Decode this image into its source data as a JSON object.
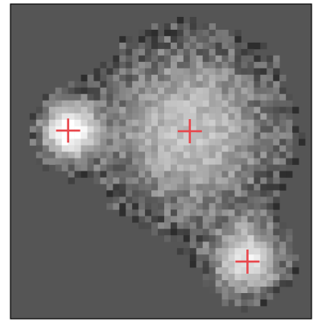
{
  "chart_data": {
    "type": "scatter",
    "x": [
      8.5,
      27.5,
      36.5
    ],
    "values": [
      19.2,
      19.3,
      39.6
    ],
    "color": "#e8474c",
    "marker": "+",
    "xlim": [
      -0.5,
      46.5
    ],
    "ylim": [
      48.5,
      -0.5
    ],
    "background": "#555555"
  }
}
